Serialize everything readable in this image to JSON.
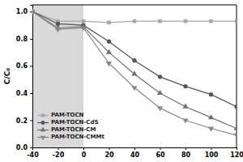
{
  "chart_data": {
    "type": "line",
    "y_label": "C/C₀",
    "x": [
      -40,
      -20,
      0,
      20,
      40,
      60,
      80,
      100,
      120
    ],
    "xlim": [
      -40,
      120
    ],
    "xticks": [
      -40,
      -20,
      0,
      20,
      40,
      60,
      80,
      100,
      120
    ],
    "ylim": [
      0,
      1.05
    ],
    "yticks": [
      {
        "value": 0,
        "label": "0.0"
      },
      {
        "value": 0.2,
        "label": "0.2"
      },
      {
        "value": 0.4,
        "label": "0.4"
      },
      {
        "value": 0.6,
        "label": "0.6"
      },
      {
        "value": 0.8,
        "label": "0.8"
      },
      {
        "value": 1,
        "label": "1.0"
      }
    ],
    "legend": "lower left",
    "series": [
      {
        "name": "PAM-TOCN",
        "color": "#a8a8a8",
        "marker": "square",
        "values": [
          1.0,
          0.93,
          0.93,
          0.92,
          0.93,
          0.93,
          0.93,
          0.93,
          0.93
        ]
      },
      {
        "name": "PAM-TOCN-CdS",
        "color": "#555555",
        "marker": "circle",
        "values": [
          1.0,
          0.91,
          0.9,
          0.78,
          0.64,
          0.52,
          0.45,
          0.39,
          0.3
        ]
      },
      {
        "name": "PAM-TOCN-CM",
        "color": "#707070",
        "marker": "triangle-up",
        "values": [
          1.0,
          0.88,
          0.89,
          0.7,
          0.54,
          0.4,
          0.3,
          0.22,
          0.14
        ]
      },
      {
        "name": "PAM-TOCN-CMMt",
        "color": "#888888",
        "marker": "triangle-down",
        "values": [
          1.0,
          0.87,
          0.88,
          0.62,
          0.44,
          0.29,
          0.2,
          0.14,
          0.09
        ]
      }
    ]
  }
}
